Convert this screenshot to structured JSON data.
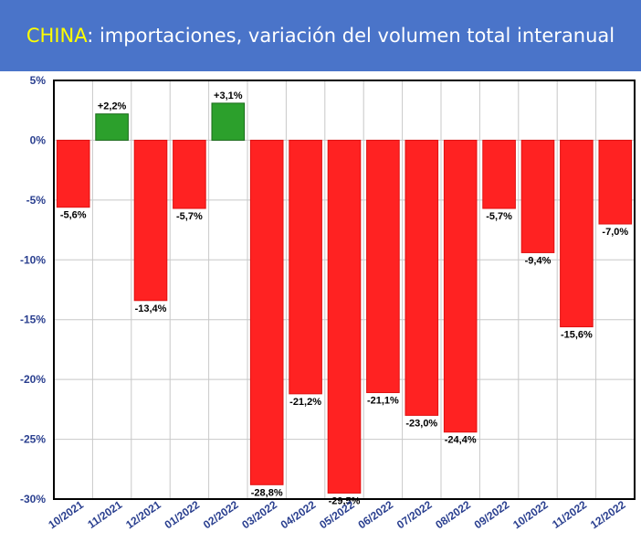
{
  "header": {
    "title_accent": "CHINA",
    "title_rest": ": importaciones, variación del volumen total interanual"
  },
  "colors": {
    "title_background": "#4a74c9",
    "title_accent": "#ffff00",
    "negative_bar": "#ff2222",
    "positive_bar": "#2ca02c",
    "axis_label": "#2a3f8f"
  },
  "chart_data": {
    "type": "bar",
    "title": "CHINA: importaciones, variación del volumen total interanual",
    "categories": [
      "10/2021",
      "11/2021",
      "12/2021",
      "01/2022",
      "02/2022",
      "03/2022",
      "04/2022",
      "05/2022",
      "06/2022",
      "07/2022",
      "08/2022",
      "09/2022",
      "10/2022",
      "11/2022",
      "12/2022"
    ],
    "series": [
      {
        "values": [
          -5.6,
          2.2,
          -13.4,
          -5.7,
          3.1,
          -28.8,
          -21.2,
          -29.5,
          -21.1,
          -23.0,
          -24.4,
          -5.7,
          -9.4,
          -15.6,
          -7.0
        ],
        "labels": [
          "-5,6%",
          "+2,2%",
          "-13,4%",
          "-5,7%",
          "+3,1%",
          "-28,8%",
          "-21,2%",
          "-29,5%",
          "-21,1%",
          "-23,0%",
          "-24,4%",
          "-5,7%",
          "-9,4%",
          "-15,6%",
          "-7,0%"
        ]
      }
    ],
    "yticks": [
      5,
      0,
      -5,
      -10,
      -15,
      -20,
      -25,
      -30
    ],
    "ytick_labels": [
      "5%",
      "0%",
      "-5%",
      "-10%",
      "-15%",
      "-20%",
      "-25%",
      "-30%"
    ],
    "ylim": [
      -30,
      5
    ],
    "grid": true,
    "xlabel": "",
    "ylabel": ""
  }
}
